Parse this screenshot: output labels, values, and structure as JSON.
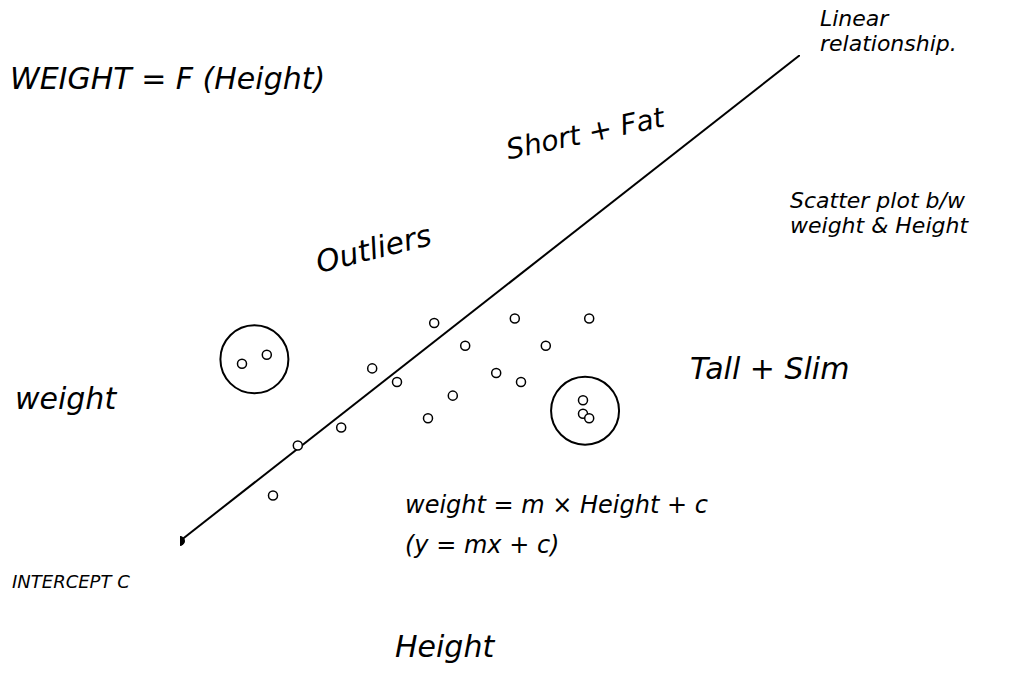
{
  "chart_data": {
    "type": "scatter",
    "title": "WEIGHT = F (Height)",
    "x_label": "Height",
    "y_label": "weight",
    "x": [
      1.5,
      1.9,
      2.6,
      3.1,
      3.5,
      4.0,
      4.4,
      4.1,
      4.6,
      5.1,
      5.5,
      5.4,
      5.9,
      6.6
    ],
    "values": [
      2.3,
      3.4,
      3.8,
      5.1,
      4.8,
      4.0,
      4.5,
      6.1,
      5.6,
      5.0,
      4.8,
      6.2,
      5.6,
      6.2
    ],
    "outlier_groups": [
      {
        "label": "Short + Fat",
        "x": [
          1.0,
          1.4
        ],
        "values": [
          5.2,
          5.4
        ]
      },
      {
        "label": "Tall + Slim",
        "x": [
          6.5,
          6.5,
          6.6
        ],
        "values": [
          4.4,
          4.1,
          4.0
        ]
      }
    ],
    "fit_line": {
      "label": "Linear relationship.",
      "x": [
        0,
        10
      ],
      "values": [
        1.3,
        12
      ]
    },
    "intercept_label": "INTERCEPT C",
    "annotations": [
      "Outliers",
      "Scatter plot b/w weight & Height",
      "weight = m × Height + c",
      "(y = mx + c)"
    ],
    "xlim": [
      0,
      10
    ],
    "ylim": [
      0,
      12
    ],
    "tick_labels": false,
    "color": "#000000",
    "marker": "circle"
  }
}
